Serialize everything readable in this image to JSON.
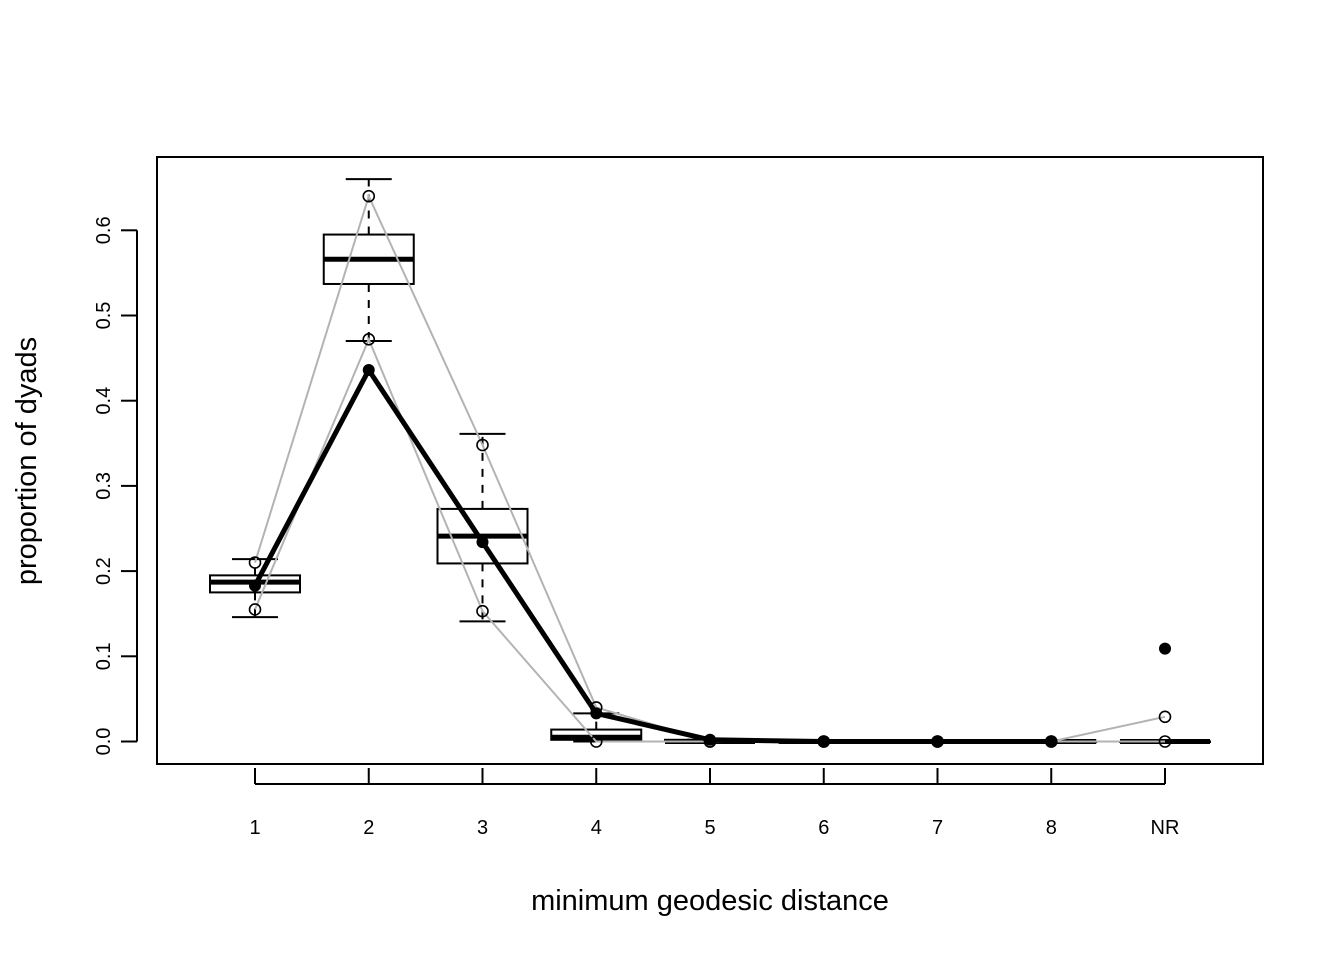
{
  "chart_data": {
    "type": "boxplot",
    "title": "",
    "xlabel": "minimum geodesic distance",
    "ylabel": "proportion of dyads",
    "categories": [
      "1",
      "2",
      "3",
      "4",
      "5",
      "6",
      "7",
      "8",
      "NR"
    ],
    "yticks": [
      "0.0",
      "0.1",
      "0.2",
      "0.3",
      "0.4",
      "0.5",
      "0.6"
    ],
    "ylim": [
      -0.027,
      0.685
    ],
    "grid": false,
    "boxes": [
      {
        "category": "1",
        "whisker_low": 0.146,
        "q1": 0.175,
        "median": 0.187,
        "q3": 0.195,
        "whisker_high": 0.214,
        "outliers": []
      },
      {
        "category": "2",
        "whisker_low": 0.47,
        "q1": 0.537,
        "median": 0.566,
        "q3": 0.595,
        "whisker_high": 0.66,
        "outliers": []
      },
      {
        "category": "3",
        "whisker_low": 0.141,
        "q1": 0.209,
        "median": 0.241,
        "q3": 0.273,
        "whisker_high": 0.361,
        "outliers": []
      },
      {
        "category": "4",
        "whisker_low": 0.0,
        "q1": 0.002,
        "median": 0.005,
        "q3": 0.014,
        "whisker_high": 0.033,
        "outliers": []
      },
      {
        "category": "5",
        "whisker_low": 0.0,
        "q1": 0.0,
        "median": 0.0,
        "q3": 0.002,
        "whisker_high": 0.002,
        "outliers": []
      },
      {
        "category": "6",
        "whisker_low": 0.0,
        "q1": 0.0,
        "median": 0.0,
        "q3": 0.0,
        "whisker_high": 0.0,
        "outliers": []
      },
      {
        "category": "7",
        "whisker_low": 0.0,
        "q1": 0.0,
        "median": 0.0,
        "q3": 0.0,
        "whisker_high": 0.0,
        "outliers": []
      },
      {
        "category": "8",
        "whisker_low": 0.0,
        "q1": 0.0,
        "median": 0.0,
        "q3": 0.0,
        "whisker_high": 0.0,
        "outliers": []
      },
      {
        "category": "NR",
        "whisker_low": 0.0,
        "q1": 0.0,
        "median": 0.0,
        "q3": 0.0,
        "whisker_high": 0.0,
        "outliers": []
      }
    ],
    "series": [
      {
        "style": "observed",
        "values": [
          0.183,
          0.436,
          0.234,
          0.033,
          0.002,
          0.0,
          0.0,
          0.0,
          0.109
        ]
      },
      {
        "style": "upper-bound",
        "values": [
          0.21,
          0.64,
          0.348,
          0.04,
          0.0,
          0.0,
          0.0,
          0.0,
          0.029
        ]
      },
      {
        "style": "lower-bound",
        "values": [
          0.155,
          0.472,
          0.153,
          0.0,
          0.0,
          0.0,
          0.0,
          0.0,
          0.0
        ]
      }
    ],
    "colors": {
      "box": "#000000",
      "observed": "#000000",
      "bounds": "#b3b3b3"
    }
  }
}
